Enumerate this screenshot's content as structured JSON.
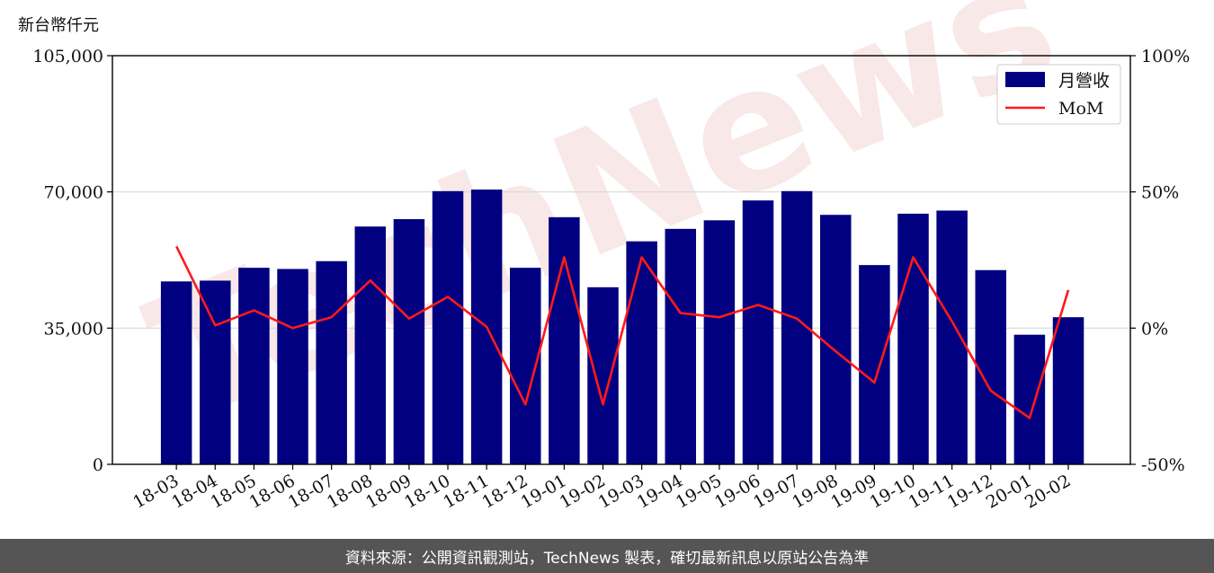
{
  "unit_label": "新台幣仟元",
  "footer_text": "資料來源：公開資訊觀測站，TechNews 製表，確切最新訊息以原站公告為準",
  "watermark": "TechNews",
  "colors": {
    "bar": "#000080",
    "line": "#ff1a1a",
    "grid": "#d9d9d9",
    "footer_bg": "#555555",
    "watermark": "#f3d6d6"
  },
  "chart_data": {
    "type": "bar",
    "categories": [
      "18-03",
      "18-04",
      "18-05",
      "18-06",
      "18-07",
      "18-08",
      "18-09",
      "18-10",
      "18-11",
      "18-12",
      "19-01",
      "19-02",
      "19-03",
      "19-04",
      "19-05",
      "19-06",
      "19-07",
      "19-08",
      "19-09",
      "19-10",
      "19-11",
      "19-12",
      "20-01",
      "20-02"
    ],
    "series": [
      {
        "name": "月營收",
        "type": "bar",
        "axis": "left",
        "values": [
          47000,
          47200,
          50500,
          50200,
          52200,
          61100,
          63000,
          70200,
          70600,
          50500,
          63500,
          45500,
          57300,
          60500,
          62700,
          67800,
          70200,
          64100,
          51200,
          64400,
          65200,
          49900,
          33300,
          37800
        ]
      },
      {
        "name": "MoM",
        "type": "line",
        "axis": "right",
        "values": [
          30,
          1,
          6.5,
          0,
          4,
          17.5,
          3.5,
          11.5,
          0.5,
          -28,
          26,
          -28,
          26,
          5.5,
          4,
          8.5,
          3.5,
          -8.5,
          -20,
          26,
          2.5,
          -23,
          -33,
          14
        ]
      }
    ],
    "left_axis": {
      "ylim": [
        0,
        105000
      ],
      "ticks": [
        "0",
        "35,000",
        "70,000",
        "105,000"
      ],
      "tick_values": [
        0,
        35000,
        70000,
        105000
      ]
    },
    "right_axis": {
      "ylim": [
        -50,
        100
      ],
      "ticks": [
        "-50%",
        "0%",
        "50%",
        "100%"
      ],
      "tick_values": [
        -50,
        0,
        50,
        100
      ]
    },
    "grid": true,
    "legend_position": "top-right"
  }
}
